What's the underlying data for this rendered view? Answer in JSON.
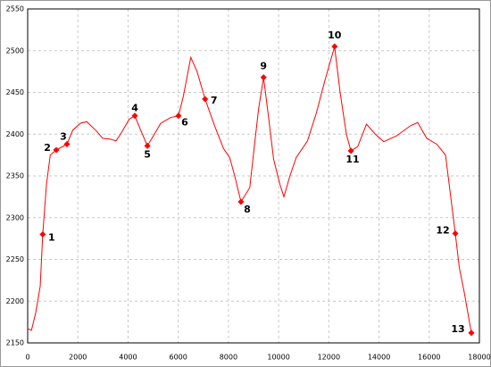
{
  "chart_data": {
    "type": "line",
    "x": [
      0,
      150,
      320,
      500,
      600,
      750,
      900,
      1140,
      1565,
      1800,
      2100,
      2350,
      2700,
      2990,
      3300,
      3520,
      3700,
      4050,
      4270,
      4500,
      4770,
      5050,
      5300,
      5700,
      6010,
      6200,
      6500,
      6750,
      7070,
      7450,
      7800,
      8050,
      8250,
      8500,
      8850,
      9050,
      9200,
      9400,
      9600,
      9800,
      10050,
      10210,
      10450,
      10700,
      11150,
      11500,
      11850,
      12230,
      12450,
      12700,
      12880,
      13150,
      13500,
      13850,
      14190,
      14700,
      15250,
      15540,
      15900,
      16300,
      16650,
      17040,
      17200,
      17400,
      17680
    ],
    "values": [
      2167,
      2165,
      2186,
      2218,
      2280,
      2340,
      2375,
      2381,
      2388,
      2405,
      2413,
      2415,
      2405,
      2395,
      2394,
      2392,
      2400,
      2418,
      2422,
      2405,
      2386,
      2400,
      2413,
      2420,
      2422,
      2445,
      2492,
      2475,
      2442,
      2410,
      2383,
      2372,
      2350,
      2319,
      2336,
      2390,
      2430,
      2468,
      2420,
      2370,
      2340,
      2325,
      2350,
      2372,
      2392,
      2425,
      2465,
      2505,
      2450,
      2400,
      2380,
      2385,
      2412,
      2400,
      2391,
      2398,
      2410,
      2414,
      2395,
      2388,
      2375,
      2281,
      2240,
      2210,
      2162
    ],
    "color": "#ff0000",
    "points": {
      "labels": [
        "1",
        "2",
        "3",
        "4",
        "5",
        "6",
        "7",
        "8",
        "9",
        "10",
        "11",
        "12",
        "13"
      ],
      "x": [
        600,
        1140,
        1565,
        4270,
        4770,
        6010,
        7070,
        8500,
        9400,
        12230,
        12880,
        17040,
        17680
      ],
      "values": [
        2280,
        2381,
        2388,
        2422,
        2386,
        2422,
        2442,
        2319,
        2468,
        2505,
        2380,
        2281,
        2162
      ]
    },
    "xlim": [
      0,
      18000
    ],
    "xticks": [
      0,
      2000,
      4000,
      6000,
      8000,
      10000,
      12000,
      14000,
      16000,
      18000
    ],
    "ylim": [
      2150,
      2550
    ],
    "yticks": [
      2150,
      2200,
      2250,
      2300,
      2350,
      2400,
      2450,
      2500,
      2550
    ],
    "grid": true
  }
}
